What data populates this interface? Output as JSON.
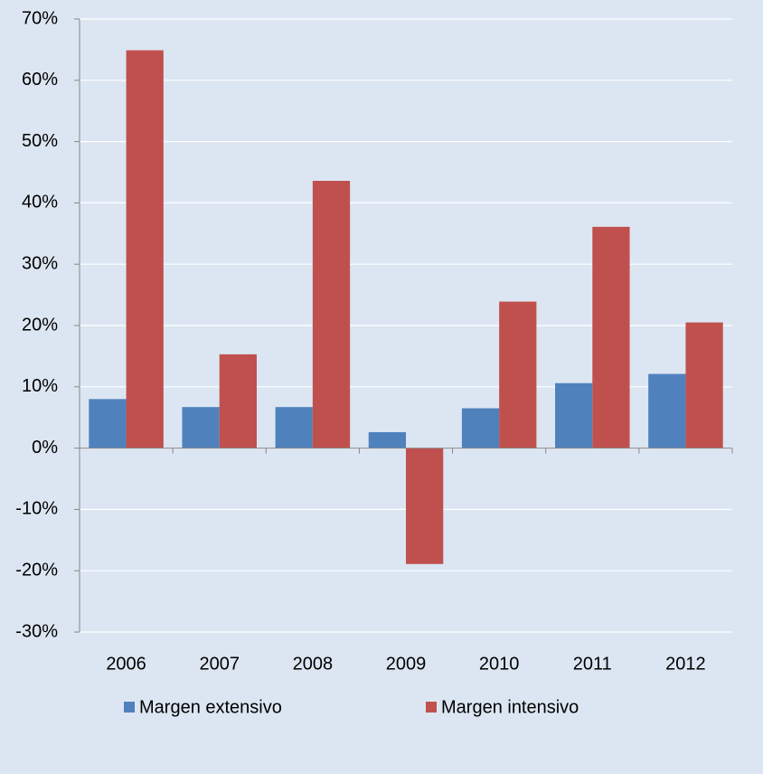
{
  "chart_data": {
    "type": "bar",
    "categories": [
      "2006",
      "2007",
      "2008",
      "2009",
      "2010",
      "2011",
      "2012"
    ],
    "series": [
      {
        "name": "Margen extensivo",
        "color": "#4f81bd",
        "values": [
          8.0,
          6.7,
          6.7,
          2.6,
          6.5,
          10.6,
          12.1
        ]
      },
      {
        "name": "Margen intensivo",
        "color": "#c0504d",
        "values": [
          64.9,
          15.3,
          43.6,
          -18.9,
          23.9,
          36.1,
          20.5
        ]
      }
    ],
    "ylim": [
      -30,
      70
    ],
    "yticks": [
      {
        "value": -30,
        "label": "-30%"
      },
      {
        "value": -20,
        "label": "-20%"
      },
      {
        "value": -10,
        "label": "-10%"
      },
      {
        "value": 0,
        "label": "0%"
      },
      {
        "value": 10,
        "label": "10%"
      },
      {
        "value": 20,
        "label": "20%"
      },
      {
        "value": 30,
        "label": "30%"
      },
      {
        "value": 40,
        "label": "40%"
      },
      {
        "value": 50,
        "label": "50%"
      },
      {
        "value": 60,
        "label": "60%"
      },
      {
        "value": 70,
        "label": "70%"
      }
    ],
    "grid": true,
    "legend": "bottom"
  }
}
